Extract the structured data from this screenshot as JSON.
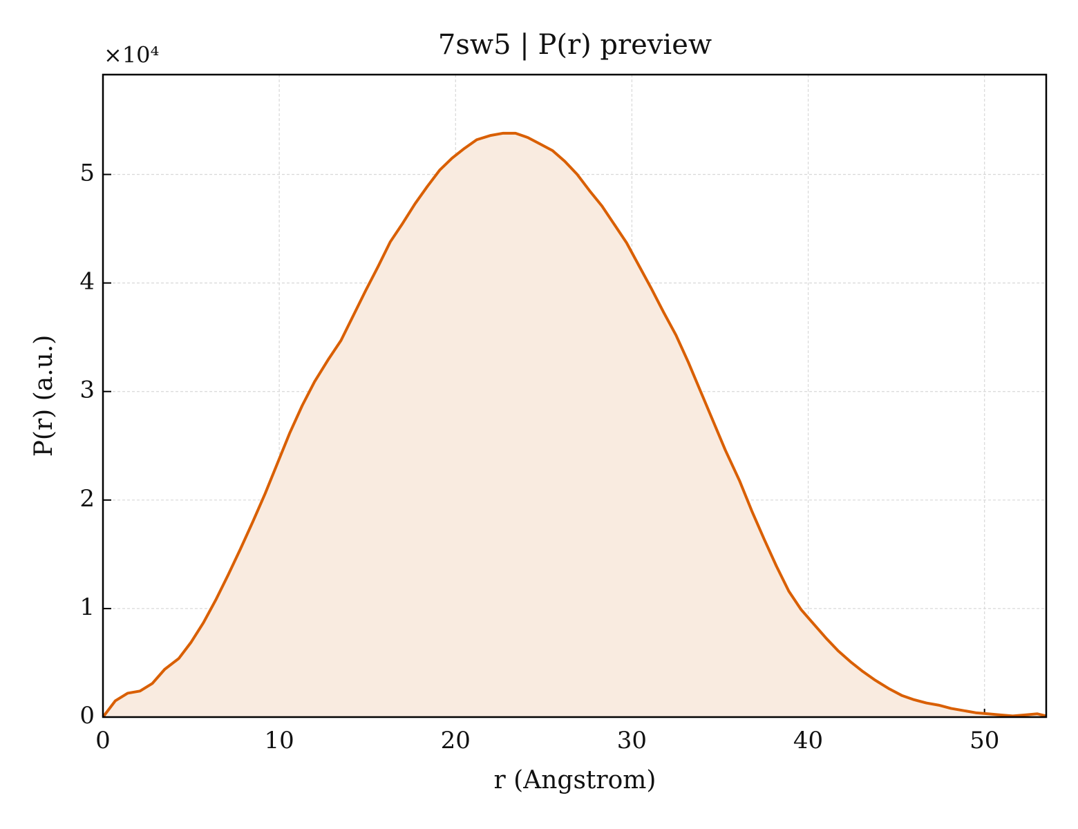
{
  "chart_data": {
    "type": "line",
    "title": "7sw5 | P(r) preview",
    "x_label": "r (Angstrom)",
    "y_label": "P(r) (a.u.)",
    "y_offset_label": "×10⁴",
    "x": [
      0,
      0.7,
      1.4,
      2.1,
      2.8,
      3.5,
      4.3,
      5.0,
      5.7,
      6.4,
      7.1,
      7.8,
      8.5,
      9.2,
      9.9,
      10.6,
      11.3,
      12.0,
      12.8,
      13.5,
      14.2,
      14.9,
      15.6,
      16.3,
      17.0,
      17.7,
      18.4,
      19.1,
      19.8,
      20.5,
      21.2,
      22.0,
      22.7,
      23.4,
      24.1,
      24.8,
      25.5,
      26.2,
      26.9,
      27.6,
      28.3,
      29.0,
      29.7,
      30.4,
      31.1,
      31.8,
      32.5,
      33.2,
      33.9,
      34.6,
      35.3,
      36.1,
      36.8,
      37.5,
      38.2,
      38.9,
      39.6,
      40.3,
      41.0,
      41.7,
      42.4,
      43.1,
      43.8,
      44.6,
      45.3,
      46.0,
      46.7,
      47.4,
      48.1,
      48.8,
      49.5,
      50.2,
      50.9,
      51.6,
      52.3,
      53.0,
      53.5
    ],
    "series": [
      {
        "name": "P(r)",
        "color": "#d95f02",
        "fill": "#f9ebe0",
        "values": [
          0,
          0.15,
          0.22,
          0.24,
          0.31,
          0.44,
          0.54,
          0.69,
          0.87,
          1.08,
          1.31,
          1.55,
          1.8,
          2.06,
          2.34,
          2.62,
          2.87,
          3.09,
          3.3,
          3.47,
          3.7,
          3.93,
          4.15,
          4.38,
          4.55,
          4.73,
          4.89,
          5.04,
          5.15,
          5.24,
          5.32,
          5.36,
          5.38,
          5.38,
          5.34,
          5.28,
          5.22,
          5.12,
          5.0,
          4.85,
          4.71,
          4.54,
          4.37,
          4.16,
          3.95,
          3.73,
          3.52,
          3.27,
          3.0,
          2.73,
          2.46,
          2.18,
          1.9,
          1.64,
          1.39,
          1.16,
          0.99,
          0.86,
          0.73,
          0.61,
          0.51,
          0.42,
          0.34,
          0.26,
          0.2,
          0.16,
          0.13,
          0.11,
          0.08,
          0.06,
          0.04,
          0.03,
          0.02,
          0.01,
          0.02,
          0.03,
          0.01
        ]
      }
    ],
    "xlim": [
      0,
      53.5
    ],
    "ylim": [
      0,
      5.92
    ],
    "xticks": [
      0,
      10,
      20,
      30,
      40,
      50
    ],
    "yticks": [
      0,
      1,
      2,
      3,
      4,
      5
    ],
    "grid": true
  }
}
